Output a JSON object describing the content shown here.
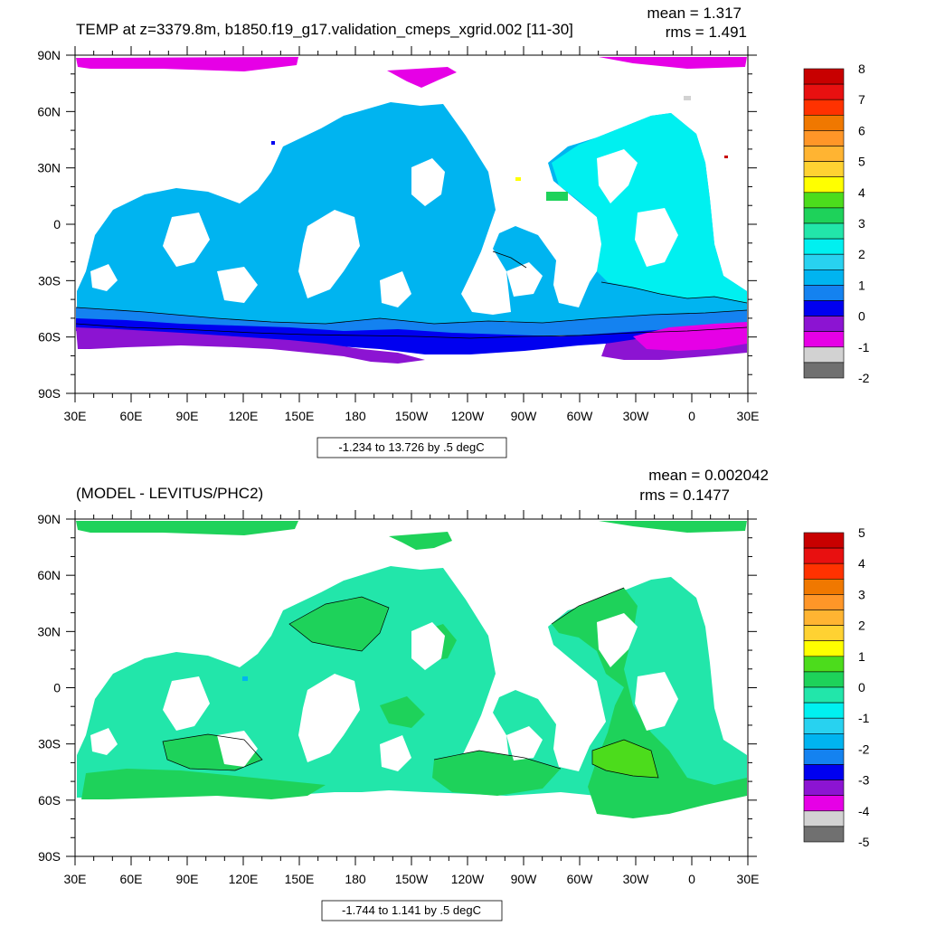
{
  "chart_data": [
    {
      "type": "map",
      "title": "TEMP at z=3379.8m, b1850.f19_g17.validation_cmeps_xgrid.002 [11-30]",
      "mean_label": "mean = 1.317",
      "rms_label": "rms = 1.491",
      "range_label": "-1.234 to 13.726 by .5 degC",
      "lon_ticks": [
        "30E",
        "60E",
        "90E",
        "120E",
        "150E",
        "180",
        "150W",
        "120W",
        "90W",
        "60W",
        "30W",
        "0",
        "30E"
      ],
      "lat_ticks": [
        "90N",
        "60N",
        "30N",
        "0",
        "30S",
        "60S",
        "90S"
      ],
      "colorbar": {
        "labels": [
          "8",
          "7",
          "6",
          "5",
          "4",
          "3",
          "2",
          "1",
          "0",
          "-1",
          "-2"
        ],
        "colors": [
          "#c80000",
          "#e81010",
          "#ff3200",
          "#f07800",
          "#ff9628",
          "#ffb432",
          "#ffd232",
          "#ffff00",
          "#4cdc1c",
          "#1ed25a",
          "#22e6aa",
          "#00f0f0",
          "#28d2f0",
          "#00b4f0",
          "#1482f0",
          "#0000f0",
          "#8c14d2",
          "#e600e6",
          "#d2d2d2",
          "#707070"
        ]
      },
      "regions": {
        "arctic_bottom": "#e600e6",
        "deep_basins": "#00b4f0",
        "atlantic": "#00f0f0",
        "southern_ocean_1": "#1482f0",
        "southern_ocean_0": "#0000f0",
        "antarctic_shelf": "#8c14d2"
      }
    },
    {
      "type": "map",
      "title": "(MODEL - LEVITUS/PHC2)",
      "mean_label": "mean = 0.002042",
      "rms_label": "rms = 0.1477",
      "range_label": "-1.744 to 1.141 by .5 degC",
      "lon_ticks": [
        "30E",
        "60E",
        "90E",
        "120E",
        "150E",
        "180",
        "150W",
        "120W",
        "90W",
        "60W",
        "30W",
        "0",
        "30E"
      ],
      "lat_ticks": [
        "90N",
        "60N",
        "30N",
        "0",
        "30S",
        "60S",
        "90S"
      ],
      "colorbar": {
        "labels": [
          "5",
          "4",
          "3",
          "2",
          "1",
          "0",
          "-1",
          "-2",
          "-3",
          "-4",
          "-5"
        ],
        "colors": [
          "#c80000",
          "#e81010",
          "#ff3200",
          "#f07800",
          "#ff9628",
          "#ffb432",
          "#ffd232",
          "#ffff00",
          "#4cdc1c",
          "#1ed25a",
          "#22e6aa",
          "#00f0f0",
          "#28d2f0",
          "#00b4f0",
          "#1482f0",
          "#0000f0",
          "#8c14d2",
          "#e600e6",
          "#d2d2d2",
          "#707070"
        ]
      },
      "regions": {
        "background": "#22e6aa",
        "positive_patches": "#1ed25a",
        "strong_positive": "#4cdc1c",
        "weak_negative": "#00f0f0"
      }
    }
  ]
}
